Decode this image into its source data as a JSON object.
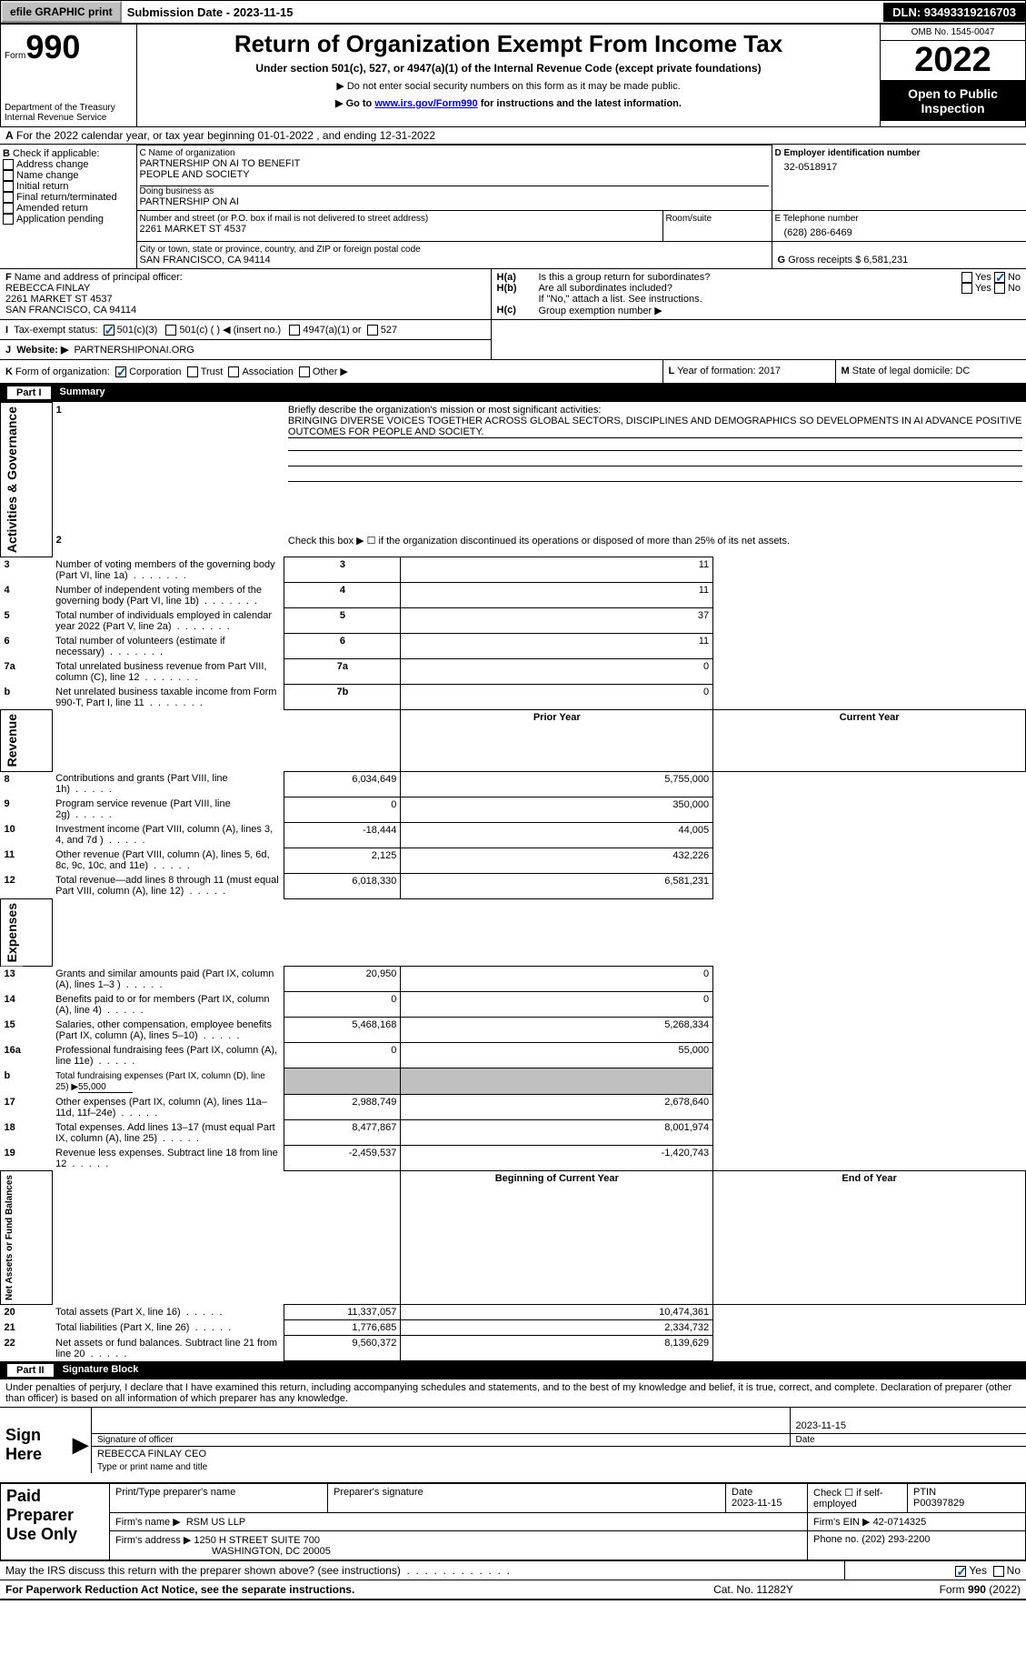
{
  "topbar": {
    "efile_label": "efile GRAPHIC print",
    "submission": "Submission Date - 2023-11-15",
    "dln": "DLN: 93493319216703"
  },
  "header": {
    "form_label": "Form",
    "form_no": "990",
    "title": "Return of Organization Exempt From Income Tax",
    "subtitle": "Under section 501(c), 527, or 4947(a)(1) of the Internal Revenue Code (except private foundations)",
    "note1": "▶ Do not enter social security numbers on this form as it may be made public.",
    "note2_prefix": "▶ Go to ",
    "note2_link": "www.irs.gov/Form990",
    "note2_suffix": " for instructions and the latest information.",
    "dept": "Department of the Treasury",
    "dept2": "Internal Revenue Service",
    "omb": "OMB No. 1545-0047",
    "year": "2022",
    "open_inspect": "Open to Public Inspection"
  },
  "A": {
    "text": "For the 2022 calendar year, or tax year beginning 01-01-2022   , and ending 12-31-2022",
    "label": "A"
  },
  "B": {
    "label": "B",
    "check_if": "Check if applicable:",
    "addr_change": "Address change",
    "name_change": "Name change",
    "initial": "Initial return",
    "final": "Final return/terminated",
    "amended": "Amended return",
    "app_pending": "Application pending"
  },
  "C": {
    "label": "C Name of organization",
    "name1": "PARTNERSHIP ON AI TO BENEFIT",
    "name2": "PEOPLE AND SOCIETY",
    "dba_label": "Doing business as",
    "dba": "PARTNERSHIP ON AI",
    "street_label": "Number and street (or P.O. box if mail is not delivered to street address)",
    "street": "2261 MARKET ST 4537",
    "room_label": "Room/suite",
    "city_label": "City or town, state or province, country, and ZIP or foreign postal code",
    "city": "SAN FRANCISCO, CA  94114"
  },
  "D": {
    "label": "D Employer identification number",
    "ein": "32-0518917"
  },
  "E": {
    "label": "E Telephone number",
    "phone": "(628) 286-6469"
  },
  "G": {
    "label": "G",
    "text": "Gross receipts $",
    "amount": "6,581,231"
  },
  "F": {
    "label": "F",
    "text": "Name and address of principal officer:",
    "name": "REBECCA FINLAY",
    "street": "2261 MARKET ST 4537",
    "city": "SAN FRANCISCO, CA  94114"
  },
  "H": {
    "a_label": "H(a)",
    "a_text": "Is this a group return for subordinates?",
    "b_label": "H(b)",
    "b_text": "Are all subordinates included?",
    "b_note": "If \"No,\" attach a list. See instructions.",
    "c_label": "H(c)",
    "c_text": "Group exemption number ▶",
    "yes": "Yes",
    "no": "No"
  },
  "I": {
    "label": "I",
    "text": "Tax-exempt status:",
    "o1": "501(c)(3)",
    "o2": "501(c) (   ) ◀ (insert no.)",
    "o3": "4947(a)(1) or",
    "o4": "527"
  },
  "J": {
    "label": "J",
    "text": "Website: ▶",
    "url": "PARTNERSHIPONAI.ORG"
  },
  "K": {
    "label": "K",
    "text": "Form of organization:",
    "corp": "Corporation",
    "trust": "Trust",
    "assoc": "Association",
    "other": "Other ▶"
  },
  "L": {
    "label": "L",
    "text": "Year of formation:",
    "val": "2017"
  },
  "M": {
    "label": "M",
    "text": "State of legal domicile:",
    "val": "DC"
  },
  "partI": {
    "label": "Part I",
    "title": "Summary"
  },
  "summary": {
    "l1_label": "Briefly describe the organization's mission or most significant activities:",
    "l1_text": "BRINGING DIVERSE VOICES TOGETHER ACROSS GLOBAL SECTORS, DISCIPLINES AND DEMOGRAPHICS SO DEVELOPMENTS IN AI ADVANCE POSITIVE OUTCOMES FOR PEOPLE AND SOCIETY.",
    "l2": "Check this box ▶ ☐ if the organization discontinued its operations or disposed of more than 25% of its net assets.",
    "vert_gov": "Activities & Governance",
    "vert_rev": "Revenue",
    "vert_exp": "Expenses",
    "vert_net": "Net Assets or Fund Balances",
    "rows_gov": [
      {
        "n": "3",
        "t": "Number of voting members of the governing body (Part VI, line 1a)",
        "box": "3",
        "v": "11"
      },
      {
        "n": "4",
        "t": "Number of independent voting members of the governing body (Part VI, line 1b)",
        "box": "4",
        "v": "11"
      },
      {
        "n": "5",
        "t": "Total number of individuals employed in calendar year 2022 (Part V, line 2a)",
        "box": "5",
        "v": "37"
      },
      {
        "n": "6",
        "t": "Total number of volunteers (estimate if necessary)",
        "box": "6",
        "v": "11"
      },
      {
        "n": "7a",
        "t": "Total unrelated business revenue from Part VIII, column (C), line 12",
        "box": "7a",
        "v": "0"
      },
      {
        "n": "b",
        "t": "Net unrelated business taxable income from Form 990-T, Part I, line 11",
        "box": "7b",
        "v": "0"
      }
    ],
    "col_prior": "Prior Year",
    "col_cur": "Current Year",
    "rows_rev": [
      {
        "n": "8",
        "t": "Contributions and grants (Part VIII, line 1h)",
        "p": "6,034,649",
        "c": "5,755,000"
      },
      {
        "n": "9",
        "t": "Program service revenue (Part VIII, line 2g)",
        "p": "0",
        "c": "350,000"
      },
      {
        "n": "10",
        "t": "Investment income (Part VIII, column (A), lines 3, 4, and 7d )",
        "p": "-18,444",
        "c": "44,005"
      },
      {
        "n": "11",
        "t": "Other revenue (Part VIII, column (A), lines 5, 6d, 8c, 9c, 10c, and 11e)",
        "p": "2,125",
        "c": "432,226"
      },
      {
        "n": "12",
        "t": "Total revenue—add lines 8 through 11 (must equal Part VIII, column (A), line 12)",
        "p": "6,018,330",
        "c": "6,581,231"
      }
    ],
    "rows_exp": [
      {
        "n": "13",
        "t": "Grants and similar amounts paid (Part IX, column (A), lines 1–3 )",
        "p": "20,950",
        "c": "0"
      },
      {
        "n": "14",
        "t": "Benefits paid to or for members (Part IX, column (A), line 4)",
        "p": "0",
        "c": "0"
      },
      {
        "n": "15",
        "t": "Salaries, other compensation, employee benefits (Part IX, column (A), lines 5–10)",
        "p": "5,468,168",
        "c": "5,268,334"
      },
      {
        "n": "16a",
        "t": "Professional fundraising fees (Part IX, column (A), line 11e)",
        "p": "0",
        "c": "55,000"
      }
    ],
    "l16b_label": "b",
    "l16b_text": "Total fundraising expenses (Part IX, column (D), line 25) ▶",
    "l16b_val": "55,000",
    "rows_exp2": [
      {
        "n": "17",
        "t": "Other expenses (Part IX, column (A), lines 11a–11d, 11f–24e)",
        "p": "2,988,749",
        "c": "2,678,640"
      },
      {
        "n": "18",
        "t": "Total expenses. Add lines 13–17 (must equal Part IX, column (A), line 25)",
        "p": "8,477,867",
        "c": "8,001,974"
      },
      {
        "n": "19",
        "t": "Revenue less expenses. Subtract line 18 from line 12",
        "p": "-2,459,537",
        "c": "-1,420,743"
      }
    ],
    "col_begin": "Beginning of Current Year",
    "col_end": "End of Year",
    "rows_net": [
      {
        "n": "20",
        "t": "Total assets (Part X, line 16)",
        "p": "11,337,057",
        "c": "10,474,361"
      },
      {
        "n": "21",
        "t": "Total liabilities (Part X, line 26)",
        "p": "1,776,685",
        "c": "2,334,732"
      },
      {
        "n": "22",
        "t": "Net assets or fund balances. Subtract line 21 from line 20",
        "p": "9,560,372",
        "c": "8,139,629"
      }
    ]
  },
  "partII": {
    "label": "Part II",
    "title": "Signature Block",
    "declaration": "Under penalties of perjury, I declare that I have examined this return, including accompanying schedules and statements, and to the best of my knowledge and belief, it is true, correct, and complete. Declaration of preparer (other than officer) is based on all information of which preparer has any knowledge."
  },
  "sign": {
    "here": "Sign Here",
    "sig_label": "Signature of officer",
    "date": "2023-11-15",
    "date_label": "Date",
    "name": "REBECCA FINLAY CEO",
    "name_label": "Type or print name and title"
  },
  "preparer": {
    "label": "Paid Preparer Use Only",
    "print_label": "Print/Type preparer's name",
    "sig_label": "Preparer's signature",
    "date_label": "Date",
    "date": "2023-11-15",
    "check_if": "Check ☐ if self-employed",
    "ptin_label": "PTIN",
    "ptin": "P00397829",
    "firm_name_label": "Firm's name    ▶",
    "firm_name": "RSM US LLP",
    "firm_ein_label": "Firm's EIN ▶",
    "firm_ein": "42-0714325",
    "firm_addr_label": "Firm's address ▶",
    "firm_addr": "1250 H STREET SUITE 700",
    "firm_addr2": "WASHINGTON, DC  20005",
    "phone_label": "Phone no.",
    "phone": "(202) 293-2200"
  },
  "footer": {
    "may_irs": "May the IRS discuss this return with the preparer shown above? (see instructions)",
    "yes": "Yes",
    "no": "No",
    "paperwork": "For Paperwork Reduction Act Notice, see the separate instructions.",
    "cat": "Cat. No. 11282Y",
    "form": "Form 990 (2022)"
  }
}
